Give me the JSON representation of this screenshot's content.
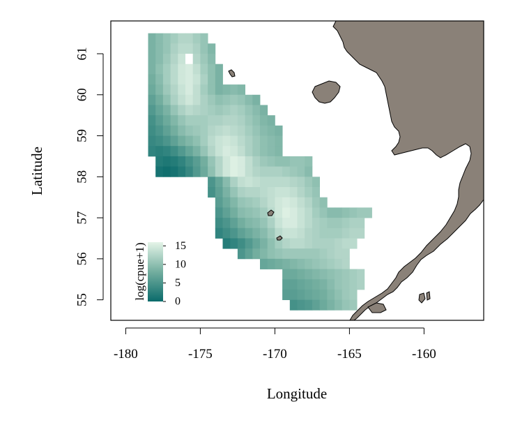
{
  "chart_data": {
    "type": "heatmap",
    "title": "",
    "xlabel": "Longitude",
    "ylabel": "Latitude",
    "xlim": [
      -181,
      -156
    ],
    "ylim": [
      54.5,
      61.8
    ],
    "x_ticks": [
      -180,
      -175,
      -170,
      -165,
      -160
    ],
    "y_ticks": [
      55,
      56,
      57,
      58,
      59,
      60,
      61
    ],
    "x_tick_labels": [
      "-180",
      "-175",
      "-170",
      "-165",
      "-160"
    ],
    "y_tick_labels": [
      "55",
      "56",
      "57",
      "58",
      "59",
      "60",
      "61"
    ],
    "cell_size_deg": {
      "lon": 0.5,
      "lat": 0.25
    },
    "value_domain": [
      0,
      16
    ],
    "color_scale": {
      "low": "#0a6b6b",
      "mid": "#73ae9f",
      "high": "#e4f4e8",
      "missing": "#ffffff"
    },
    "land_color": "#8a8178",
    "legend": {
      "title": "log(cpue+1)",
      "ticks": [
        0,
        5,
        10,
        15
      ],
      "tick_labels": [
        "0",
        "5",
        "10",
        "15"
      ],
      "position": "bottom-left"
    },
    "rows": [
      {
        "lat": 61.25,
        "lon_start": -178.5,
        "values": [
          8.5,
          9.5,
          10.5,
          11.5,
          12.5,
          12.5,
          11.5,
          10.5
        ]
      },
      {
        "lat": 61.0,
        "lon_start": -178.5,
        "values": [
          8.5,
          9.5,
          10.5,
          12.0,
          13.0,
          13.0,
          12.0,
          10.5,
          9.0
        ]
      },
      {
        "lat": 60.75,
        "lon_start": -178.5,
        "values": [
          8.5,
          9.5,
          11.0,
          12.5,
          14.0,
          null,
          12.5,
          11.0,
          9.5
        ]
      },
      {
        "lat": 60.5,
        "lon_start": -178.5,
        "values": [
          8.5,
          10.0,
          11.5,
          13.0,
          14.5,
          15.0,
          13.5,
          11.5,
          10.0,
          8.5
        ]
      },
      {
        "lat": 60.25,
        "lon_start": -178.5,
        "values": [
          8.0,
          9.5,
          11.5,
          13.0,
          14.5,
          15.0,
          14.0,
          12.0,
          10.0,
          8.5
        ]
      },
      {
        "lat": 60.0,
        "lon_start": -178.5,
        "values": [
          7.5,
          9.0,
          11.0,
          12.5,
          14.0,
          15.0,
          13.5,
          11.5,
          10.0,
          8.5,
          9.0,
          9.5,
          9.0
        ]
      },
      {
        "lat": 59.75,
        "lon_start": -178.5,
        "values": [
          6.5,
          8.0,
          10.0,
          12.0,
          13.5,
          14.5,
          13.5,
          12.0,
          11.0,
          10.0,
          10.5,
          11.0,
          10.5,
          9.5,
          8.5
        ]
      },
      {
        "lat": 59.5,
        "lon_start": -178.5,
        "values": [
          5.5,
          7.0,
          8.5,
          10.5,
          12.0,
          13.0,
          12.5,
          12.0,
          11.5,
          11.0,
          11.5,
          12.0,
          11.5,
          10.5,
          9.5,
          8.5
        ]
      },
      {
        "lat": 59.25,
        "lon_start": -178.5,
        "values": [
          4.5,
          6.0,
          7.5,
          9.0,
          10.5,
          11.5,
          11.5,
          11.5,
          12.0,
          12.0,
          12.5,
          12.5,
          12.0,
          11.0,
          10.0,
          9.0,
          8.5
        ]
      },
      {
        "lat": 59.0,
        "lon_start": -178.5,
        "values": [
          4.0,
          5.0,
          6.5,
          8.0,
          9.5,
          10.5,
          11.0,
          11.5,
          12.5,
          13.0,
          13.5,
          13.0,
          12.5,
          11.5,
          10.5,
          9.5,
          9.0,
          8.5
        ]
      },
      {
        "lat": 58.75,
        "lon_start": -178.5,
        "values": [
          3.5,
          4.0,
          5.0,
          6.5,
          8.0,
          9.0,
          10.0,
          11.5,
          13.0,
          14.0,
          14.5,
          14.0,
          13.0,
          12.0,
          11.0,
          10.0,
          9.5,
          9.0
        ]
      },
      {
        "lat": 58.5,
        "lon_start": -178.5,
        "values": [
          3.0,
          2.5,
          3.0,
          4.0,
          5.5,
          7.0,
          8.5,
          10.5,
          12.5,
          14.0,
          15.0,
          14.5,
          13.5,
          12.0,
          11.0,
          10.0,
          9.5,
          9.0
        ]
      },
      {
        "lat": 58.25,
        "lon_start": -178.0,
        "values": [
          2.0,
          1.5,
          2.0,
          3.0,
          4.5,
          6.0,
          8.0,
          10.5,
          12.5,
          14.5,
          15.5,
          15.0,
          13.5,
          12.0,
          11.0,
          10.5,
          10.0,
          10.0,
          10.5,
          10.5,
          10.0
        ]
      },
      {
        "lat": 58.0,
        "lon_start": -178.0,
        "values": [
          1.0,
          0.5,
          1.0,
          2.0,
          3.5,
          5.5,
          7.5,
          10.0,
          12.5,
          14.5,
          15.5,
          15.0,
          13.5,
          12.5,
          12.0,
          12.0,
          12.0,
          11.5,
          11.0,
          10.5,
          9.5
        ]
      },
      {
        "lat": 57.75,
        "lon_start": -174.5,
        "values": [
          5.0,
          7.0,
          9.5,
          12.0,
          13.5,
          14.0,
          13.5,
          13.0,
          13.0,
          13.0,
          13.0,
          12.5,
          12.0,
          11.0,
          10.0
        ]
      },
      {
        "lat": 57.5,
        "lon_start": -174.5,
        "values": [
          4.5,
          6.5,
          8.5,
          10.5,
          12.0,
          12.5,
          12.5,
          13.0,
          13.5,
          14.0,
          14.0,
          13.5,
          12.5,
          11.5,
          10.5
        ]
      },
      {
        "lat": 57.25,
        "lon_start": -174.0,
        "values": [
          6.0,
          7.5,
          9.0,
          10.5,
          11.0,
          11.5,
          12.5,
          13.5,
          14.5,
          15.0,
          14.5,
          13.5,
          12.5,
          11.0,
          10.0
        ]
      },
      {
        "lat": 57.0,
        "lon_start": -174.0,
        "values": [
          5.0,
          6.5,
          8.0,
          9.5,
          10.0,
          10.5,
          11.5,
          13.0,
          14.5,
          15.5,
          15.0,
          14.0,
          13.0,
          11.5,
          10.5,
          9.5,
          9.5,
          10.0,
          10.5,
          11.0,
          11.0
        ]
      },
      {
        "lat": 56.75,
        "lon_start": -174.0,
        "values": [
          4.0,
          5.0,
          6.5,
          8.0,
          9.0,
          9.5,
          10.5,
          12.0,
          14.0,
          15.0,
          15.0,
          14.0,
          13.0,
          12.0,
          11.5,
          11.0,
          11.0,
          11.5,
          12.0,
          12.0
        ]
      },
      {
        "lat": 56.5,
        "lon_start": -174.0,
        "values": [
          3.0,
          4.0,
          5.0,
          6.5,
          7.5,
          8.5,
          9.5,
          11.0,
          13.0,
          14.0,
          14.0,
          13.5,
          12.5,
          12.0,
          11.5,
          11.5,
          11.5,
          12.0,
          12.5,
          12.5
        ]
      },
      {
        "lat": 56.25,
        "lon_start": -173.5,
        "values": [
          2.0,
          3.0,
          4.0,
          5.5,
          7.0,
          8.5,
          10.0,
          11.5,
          12.5,
          13.0,
          13.0,
          12.5,
          12.0,
          12.0,
          12.0,
          12.5,
          13.0,
          13.0
        ]
      },
      {
        "lat": 56.0,
        "lon_start": -172.5,
        "values": [
          5.0,
          6.5,
          8.0,
          9.0,
          10.0,
          10.5,
          11.0,
          11.0,
          11.0,
          11.0,
          11.0,
          11.5,
          12.0,
          12.5,
          12.5
        ]
      },
      {
        "lat": 55.75,
        "lon_start": -171.0,
        "values": [
          7.0,
          7.5,
          8.0,
          8.5,
          9.0,
          9.5,
          10.0,
          10.5,
          11.0,
          11.5,
          12.0,
          12.5
        ]
      },
      {
        "lat": 55.5,
        "lon_start": -169.5,
        "values": [
          7.5,
          7.5,
          8.0,
          8.5,
          9.0,
          9.5,
          10.0,
          10.5,
          11.0,
          11.5,
          12.0
        ]
      },
      {
        "lat": 55.25,
        "lon_start": -169.5,
        "values": [
          6.5,
          6.5,
          7.0,
          7.5,
          8.0,
          8.5,
          9.5,
          10.5,
          11.0,
          11.5,
          12.0
        ]
      },
      {
        "lat": 55.0,
        "lon_start": -169.5,
        "values": [
          6.0,
          6.0,
          6.5,
          7.0,
          7.5,
          8.0,
          9.0,
          10.0,
          11.0,
          11.5
        ]
      },
      {
        "lat": 54.75,
        "lon_start": -169.0,
        "values": [
          4.5,
          5.0,
          5.5,
          6.5,
          7.5,
          8.5,
          9.5,
          10.5,
          11.0
        ]
      }
    ]
  }
}
